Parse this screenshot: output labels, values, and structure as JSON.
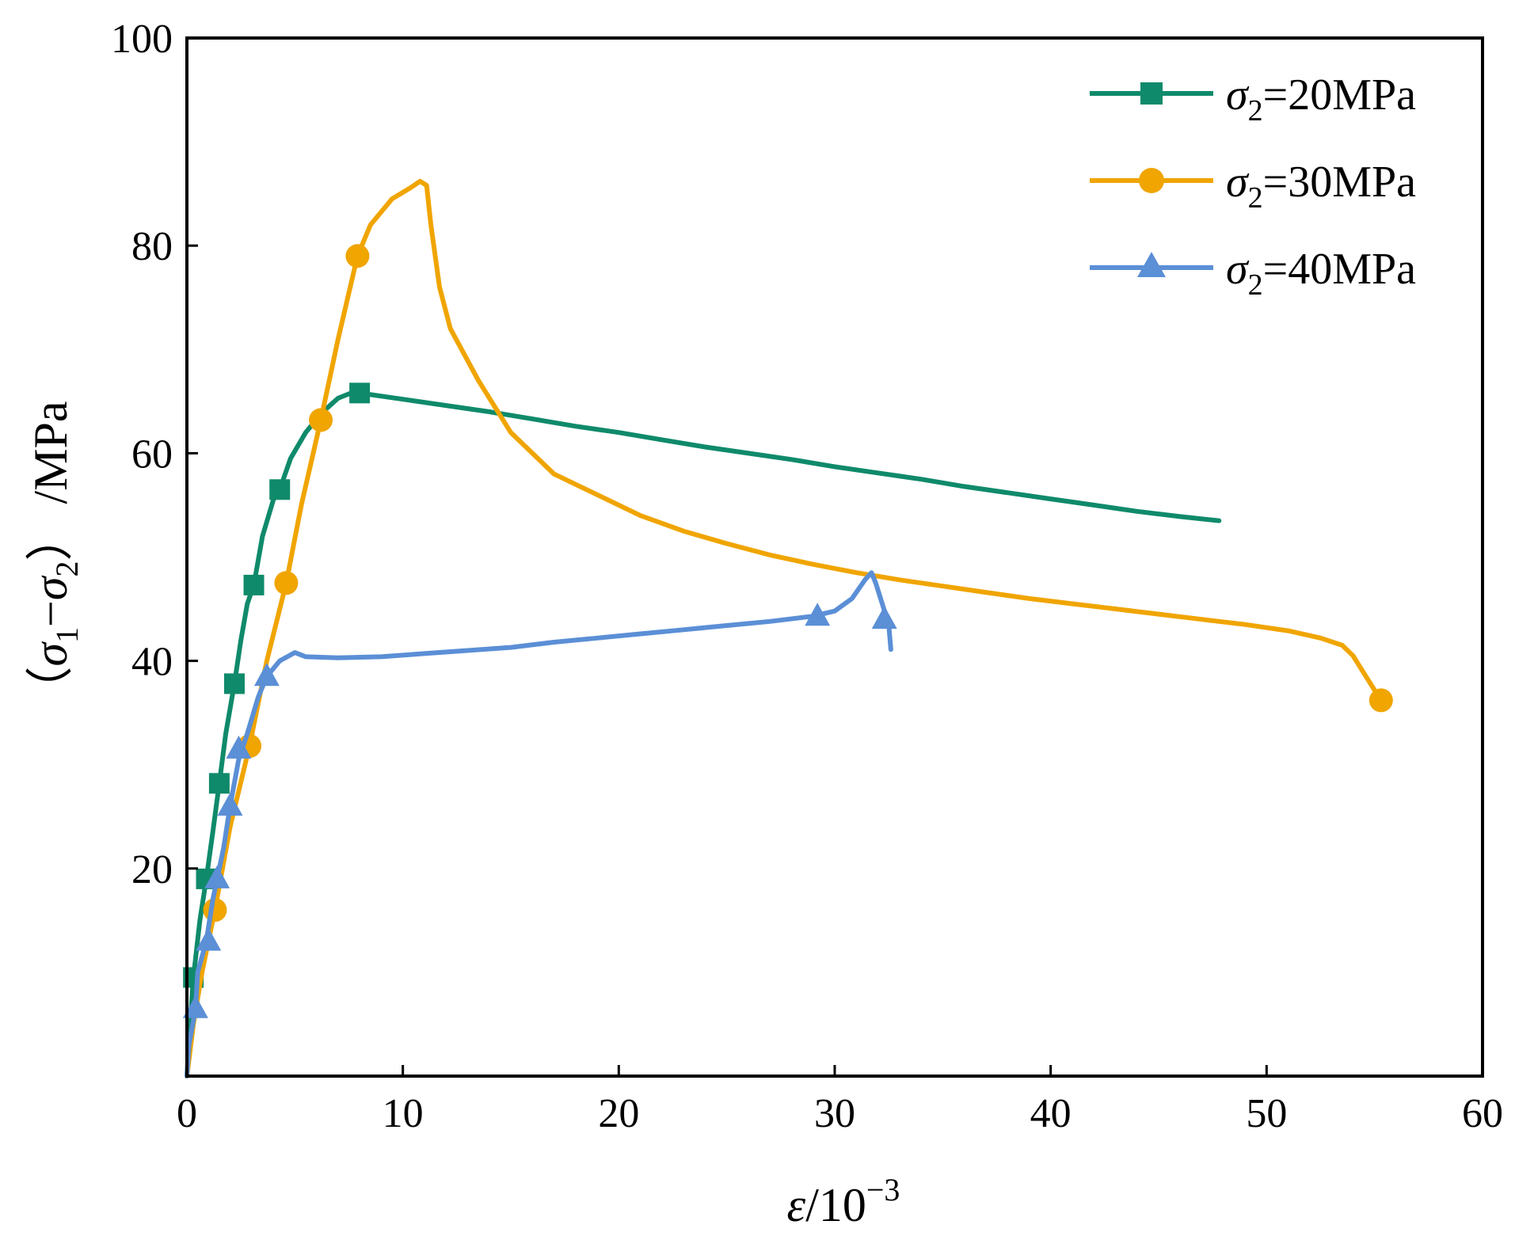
{
  "chart_data": {
    "type": "line",
    "xlabel": {
      "symbol": "ε",
      "base": "/10",
      "exponent": "−3"
    },
    "ylabel": {
      "open": "（",
      "s1": "σ",
      "sub1": "1",
      "minus": "−",
      "s2": "σ",
      "sub2": "2",
      "close": "）",
      "unit": "/MPa"
    },
    "xlim": [
      0,
      60
    ],
    "ylim": [
      0,
      100
    ],
    "xticks": [
      0,
      10,
      20,
      30,
      40,
      50,
      60
    ],
    "yticks": [
      20,
      40,
      60,
      80,
      100
    ],
    "grid": false,
    "legend_position": "top-right",
    "series": [
      {
        "name": "σ2=20MPa",
        "legend": {
          "symbol": "σ",
          "sub": "2",
          "rest": "=20MPa"
        },
        "color": "#0f8a6a",
        "marker": "square",
        "points": [
          [
            0,
            0
          ],
          [
            0.15,
            5
          ],
          [
            0.3,
            9.5
          ],
          [
            0.6,
            15
          ],
          [
            0.9,
            19
          ],
          [
            1.2,
            23.5
          ],
          [
            1.5,
            28.2
          ],
          [
            1.8,
            33
          ],
          [
            2.2,
            37.8
          ],
          [
            2.5,
            42
          ],
          [
            2.8,
            45.5
          ],
          [
            3.1,
            47.3
          ],
          [
            3.5,
            52
          ],
          [
            4.0,
            55.5
          ],
          [
            4.3,
            56.5
          ],
          [
            4.8,
            59.5
          ],
          [
            5.5,
            62
          ],
          [
            6.3,
            64
          ],
          [
            7.0,
            65.3
          ],
          [
            7.6,
            65.8
          ],
          [
            8.0,
            65.8
          ],
          [
            10,
            65.2
          ],
          [
            12,
            64.6
          ],
          [
            14,
            64.0
          ],
          [
            16,
            63.3
          ],
          [
            18,
            62.6
          ],
          [
            20,
            62.0
          ],
          [
            22,
            61.3
          ],
          [
            24,
            60.6
          ],
          [
            26,
            60.0
          ],
          [
            28,
            59.4
          ],
          [
            30,
            58.7
          ],
          [
            32,
            58.1
          ],
          [
            34,
            57.5
          ],
          [
            36,
            56.8
          ],
          [
            38,
            56.2
          ],
          [
            40,
            55.6
          ],
          [
            42,
            55.0
          ],
          [
            44,
            54.4
          ],
          [
            46,
            53.9
          ],
          [
            47.8,
            53.5
          ]
        ],
        "markers": [
          [
            0.3,
            9.5
          ],
          [
            0.9,
            19
          ],
          [
            1.5,
            28.2
          ],
          [
            2.2,
            37.8
          ],
          [
            3.1,
            47.3
          ],
          [
            4.3,
            56.5
          ],
          [
            8.0,
            65.8
          ]
        ]
      },
      {
        "name": "σ2=30MPa",
        "legend": {
          "symbol": "σ",
          "sub": "2",
          "rest": "=30MPa"
        },
        "color": "#f0a500",
        "marker": "circle",
        "points": [
          [
            0,
            0
          ],
          [
            0.3,
            5
          ],
          [
            0.7,
            10
          ],
          [
            1.3,
            16
          ],
          [
            2.0,
            24
          ],
          [
            2.9,
            31.8
          ],
          [
            3.7,
            40
          ],
          [
            4.6,
            47.5
          ],
          [
            5.3,
            55
          ],
          [
            6.2,
            63.2
          ],
          [
            7.0,
            71
          ],
          [
            7.9,
            79
          ],
          [
            8.5,
            82
          ],
          [
            9.5,
            84.5
          ],
          [
            10.3,
            85.5
          ],
          [
            10.8,
            86.2
          ],
          [
            11.1,
            85.8
          ],
          [
            11.3,
            82
          ],
          [
            11.7,
            76
          ],
          [
            12.2,
            72
          ],
          [
            13.5,
            67
          ],
          [
            15,
            62
          ],
          [
            17,
            58
          ],
          [
            19,
            56
          ],
          [
            21,
            54
          ],
          [
            23,
            52.5
          ],
          [
            25,
            51.3
          ],
          [
            27,
            50.2
          ],
          [
            29,
            49.3
          ],
          [
            31,
            48.5
          ],
          [
            33,
            47.8
          ],
          [
            35,
            47.2
          ],
          [
            37,
            46.6
          ],
          [
            39,
            46
          ],
          [
            41,
            45.5
          ],
          [
            43,
            45
          ],
          [
            45,
            44.5
          ],
          [
            47,
            44
          ],
          [
            49,
            43.5
          ],
          [
            51,
            42.9
          ],
          [
            52.5,
            42.2
          ],
          [
            53.5,
            41.5
          ],
          [
            54,
            40.5
          ],
          [
            54.6,
            38.5
          ],
          [
            55.3,
            36.2
          ]
        ],
        "markers": [
          [
            1.3,
            16
          ],
          [
            2.9,
            31.8
          ],
          [
            4.6,
            47.5
          ],
          [
            6.2,
            63.2
          ],
          [
            7.9,
            79
          ],
          [
            55.3,
            36.2
          ]
        ]
      },
      {
        "name": "σ2=40MPa",
        "legend": {
          "symbol": "σ",
          "sub": "2",
          "rest": "=40MPa"
        },
        "color": "#5b8fd6",
        "marker": "triangle",
        "points": [
          [
            0,
            0
          ],
          [
            0.1,
            3
          ],
          [
            0.4,
            6.5
          ],
          [
            0.5,
            10
          ],
          [
            0.9,
            13
          ],
          [
            1.2,
            17
          ],
          [
            1.4,
            19
          ],
          [
            1.7,
            22
          ],
          [
            2.0,
            26
          ],
          [
            2.4,
            30.5
          ],
          [
            2.8,
            33
          ],
          [
            3.3,
            36.5
          ],
          [
            3.7,
            38.5
          ],
          [
            4.3,
            40
          ],
          [
            5,
            40.8
          ],
          [
            5.5,
            40.4
          ],
          [
            7,
            40.3
          ],
          [
            9,
            40.4
          ],
          [
            11,
            40.7
          ],
          [
            13,
            41
          ],
          [
            15,
            41.3
          ],
          [
            17,
            41.8
          ],
          [
            19,
            42.2
          ],
          [
            21,
            42.6
          ],
          [
            23,
            43
          ],
          [
            25,
            43.4
          ],
          [
            27,
            43.8
          ],
          [
            29,
            44.3
          ],
          [
            30,
            44.8
          ],
          [
            30.8,
            46
          ],
          [
            31.4,
            47.8
          ],
          [
            31.7,
            48.5
          ],
          [
            31.9,
            47.5
          ],
          [
            32.2,
            45.5
          ],
          [
            32.5,
            43.5
          ],
          [
            32.6,
            41.1
          ]
        ],
        "markers": [
          [
            0.4,
            6.5
          ],
          [
            1.0,
            13
          ],
          [
            1.4,
            19
          ],
          [
            2.0,
            26
          ],
          [
            2.4,
            31.5
          ],
          [
            3.7,
            38.5
          ],
          [
            29.2,
            44.3
          ],
          [
            32.3,
            44
          ]
        ]
      }
    ]
  }
}
